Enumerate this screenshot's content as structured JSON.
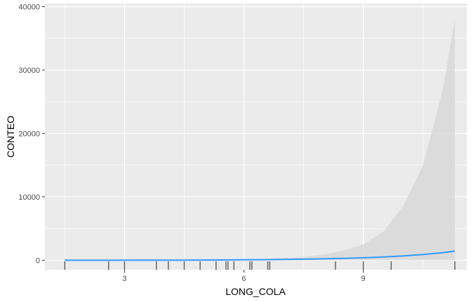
{
  "chart_data": {
    "type": "area",
    "title": "",
    "xlabel": "LONG_COLA",
    "ylabel": "CONTEO",
    "xlim": [
      1.0,
      11.6
    ],
    "ylim": [
      -1500,
      40500
    ],
    "x_ticks": [
      3,
      6,
      9
    ],
    "x_tick_labels": [
      "3",
      "6",
      "9"
    ],
    "y_ticks": [
      0,
      10000,
      20000,
      30000,
      40000
    ],
    "y_tick_labels": [
      "0",
      "10000",
      "20000",
      "30000",
      "40000"
    ],
    "grid": true,
    "legend": "none",
    "series": [
      {
        "type": "line",
        "x": [
          1.5,
          2.5,
          3.5,
          4.5,
          5.5,
          6.0,
          6.5,
          7.0,
          7.5,
          8.0,
          8.5,
          9.0,
          9.5,
          10.0,
          10.5,
          11.0,
          11.3
        ],
        "y": [
          3,
          6,
          12,
          24,
          48,
          70,
          95,
          130,
          170,
          225,
          300,
          390,
          520,
          680,
          900,
          1200,
          1450
        ]
      }
    ],
    "confidence_band": {
      "x": [
        1.5,
        2.5,
        3.5,
        4.5,
        5.5,
        6.0,
        6.5,
        7.0,
        7.5,
        8.0,
        8.5,
        9.0,
        9.5,
        10.0,
        10.5,
        11.0,
        11.3
      ],
      "lower": [
        0,
        0,
        0,
        0,
        0,
        0,
        0,
        0,
        0,
        0,
        0,
        0,
        0,
        0,
        0,
        0,
        0
      ],
      "upper": [
        10,
        20,
        40,
        70,
        120,
        160,
        220,
        350,
        550,
        900,
        1500,
        2500,
        4500,
        8500,
        15000,
        27000,
        38000
      ]
    },
    "rug_x": [
      1.5,
      2.6,
      3.0,
      3.8,
      4.1,
      4.5,
      4.9,
      5.3,
      5.55,
      5.6,
      5.75,
      6.15,
      6.2,
      6.6,
      6.65,
      8.3,
      9.0,
      9.7,
      11.3
    ],
    "colors": {
      "panel": "#EBEBEB",
      "grid_major": "#FFFFFF",
      "line": "#3399FF",
      "band": "#D9D9D9",
      "rug": "#595959",
      "tick": "#333333"
    }
  }
}
